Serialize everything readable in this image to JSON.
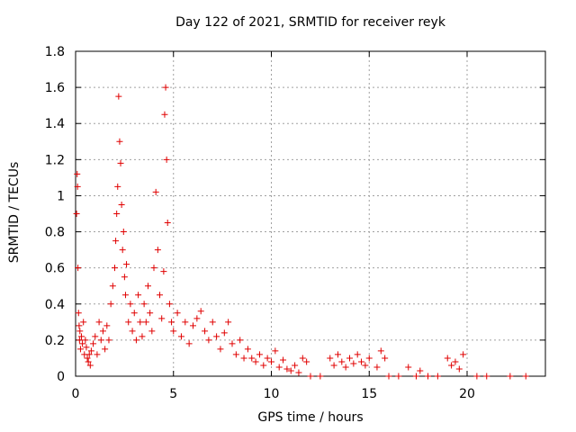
{
  "chart_data": {
    "type": "scatter",
    "title": "Day 122 of 2021, SRMTID for receiver reyk",
    "xlabel": "GPS time / hours",
    "ylabel": "SRMTID / TECUs",
    "xlim": [
      0,
      24
    ],
    "ylim": [
      0,
      1.8
    ],
    "xticks": [
      0,
      5,
      10,
      15,
      20
    ],
    "yticks": [
      0,
      0.2,
      0.4,
      0.6,
      0.8,
      1,
      1.2,
      1.4,
      1.6,
      1.8
    ],
    "ytick_labels": [
      "0",
      "0.2",
      "0.4",
      "0.6",
      "0.8",
      "1",
      "1.2",
      "1.4",
      "1.6",
      "1.8"
    ],
    "grid": true,
    "marker": "+",
    "color": "#e00000",
    "series": [
      {
        "name": "SRMTID",
        "x": [
          0.05,
          0.08,
          0.1,
          0.12,
          0.15,
          0.18,
          0.2,
          0.22,
          0.25,
          0.3,
          0.35,
          0.4,
          0.45,
          0.5,
          0.55,
          0.6,
          0.65,
          0.7,
          0.75,
          0.8,
          0.9,
          1.0,
          1.1,
          1.2,
          1.3,
          1.4,
          1.5,
          1.6,
          1.7,
          1.8,
          1.9,
          2.0,
          2.05,
          2.1,
          2.15,
          2.2,
          2.25,
          2.3,
          2.35,
          2.4,
          2.45,
          2.5,
          2.55,
          2.6,
          2.7,
          2.8,
          2.9,
          3.0,
          3.1,
          3.2,
          3.3,
          3.4,
          3.5,
          3.6,
          3.7,
          3.8,
          3.9,
          4.0,
          4.1,
          4.2,
          4.3,
          4.4,
          4.5,
          4.55,
          4.6,
          4.65,
          4.7,
          4.8,
          4.9,
          5.0,
          5.2,
          5.4,
          5.6,
          5.8,
          6.0,
          6.2,
          6.4,
          6.6,
          6.8,
          7.0,
          7.2,
          7.4,
          7.6,
          7.8,
          8.0,
          8.2,
          8.4,
          8.6,
          8.8,
          9.0,
          9.2,
          9.4,
          9.6,
          9.8,
          10.0,
          10.2,
          10.4,
          10.6,
          10.8,
          11.0,
          11.2,
          11.4,
          11.6,
          11.8,
          12.0,
          12.5,
          13.0,
          13.2,
          13.4,
          13.6,
          13.8,
          14.0,
          14.2,
          14.4,
          14.6,
          14.8,
          15.0,
          15.4,
          15.6,
          15.8,
          16.0,
          16.5,
          17.0,
          17.4,
          17.6,
          18.0,
          18.5,
          19.0,
          19.2,
          19.4,
          19.6,
          19.8,
          20.5,
          21.0,
          22.2,
          23.0
        ],
        "y": [
          0.9,
          1.12,
          1.05,
          0.6,
          0.35,
          0.28,
          0.2,
          0.25,
          0.15,
          0.22,
          0.18,
          0.3,
          0.12,
          0.2,
          0.16,
          0.1,
          0.08,
          0.12,
          0.06,
          0.14,
          0.18,
          0.22,
          0.12,
          0.3,
          0.2,
          0.25,
          0.15,
          0.28,
          0.2,
          0.4,
          0.5,
          0.6,
          0.75,
          0.9,
          1.05,
          1.55,
          1.3,
          1.18,
          0.95,
          0.7,
          0.8,
          0.55,
          0.45,
          0.62,
          0.3,
          0.4,
          0.25,
          0.35,
          0.2,
          0.45,
          0.3,
          0.22,
          0.4,
          0.3,
          0.5,
          0.35,
          0.25,
          0.6,
          1.02,
          0.7,
          0.45,
          0.32,
          0.58,
          1.45,
          1.6,
          1.2,
          0.85,
          0.4,
          0.3,
          0.25,
          0.35,
          0.22,
          0.3,
          0.18,
          0.28,
          0.32,
          0.36,
          0.25,
          0.2,
          0.3,
          0.22,
          0.15,
          0.24,
          0.3,
          0.18,
          0.12,
          0.2,
          0.1,
          0.15,
          0.1,
          0.08,
          0.12,
          0.06,
          0.1,
          0.08,
          0.14,
          0.05,
          0.09,
          0.04,
          0.03,
          0.06,
          0.02,
          0.1,
          0.08,
          0.0,
          0.0,
          0.1,
          0.06,
          0.12,
          0.08,
          0.05,
          0.1,
          0.07,
          0.12,
          0.08,
          0.06,
          0.1,
          0.05,
          0.14,
          0.1,
          0.0,
          0.0,
          0.05,
          0.0,
          0.03,
          0.0,
          0.0,
          0.1,
          0.06,
          0.08,
          0.04,
          0.12,
          0.0,
          0.0,
          0.0,
          0.0
        ]
      }
    ]
  }
}
